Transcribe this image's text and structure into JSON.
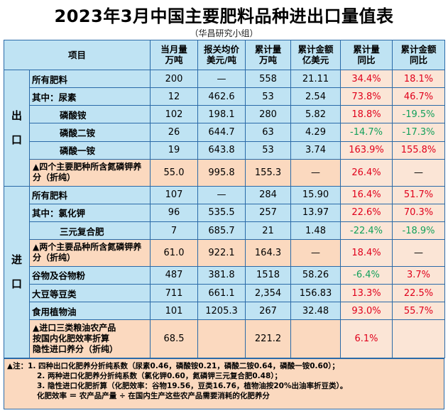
{
  "title": "2023年3月中国主要肥料品种进出口量值表",
  "subtitle": "（华昌研究小组）",
  "headers": {
    "item": "项目",
    "c1a": "当月量",
    "c1b": "万吨",
    "c2a": "报关均价",
    "c2b": "美元/吨",
    "c3a": "累计量",
    "c3b": "万吨",
    "c4a": "累计金额",
    "c4b": "亿美元",
    "c5a": "累计量",
    "c5b": "同比",
    "c6a": "累计金额",
    "c6b": "同比"
  },
  "sections": {
    "export_a": "出",
    "export_b": "口",
    "import_a": "进",
    "import_b": "口"
  },
  "export_rows": [
    {
      "item": "所有肥料",
      "month": "200",
      "price": "—",
      "cum": "558",
      "amount": "21.11",
      "cum_yoy": "34.4%",
      "amt_yoy": "18.1%"
    },
    {
      "item": "其中：尿素",
      "month": "12",
      "price": "462.6",
      "cum": "53",
      "amount": "2.54",
      "cum_yoy": "73.8%",
      "amt_yoy": "46.7%"
    },
    {
      "item": "磷酸铵",
      "month": "102",
      "price": "198.1",
      "cum": "280",
      "amount": "5.82",
      "cum_yoy": "18.8%",
      "amt_yoy": "-19.5%"
    },
    {
      "item": "磷酸二铵",
      "month": "26",
      "price": "644.7",
      "cum": "63",
      "amount": "4.29",
      "cum_yoy": "-14.7%",
      "amt_yoy": "-17.3%"
    },
    {
      "item": "磷酸一铵",
      "month": "19",
      "price": "643.8",
      "cum": "53",
      "amount": "3.74",
      "cum_yoy": "163.9%",
      "amt_yoy": "155.8%"
    },
    {
      "item": "▲四个主要肥种所含氮磷钾养分（折纯）",
      "month": "55.0",
      "price": "995.8",
      "cum": "155.3",
      "amount": "—",
      "cum_yoy": "26.4%",
      "amt_yoy": "—"
    }
  ],
  "import_rows": [
    {
      "item": "所有肥料",
      "month": "107",
      "price": "—",
      "cum": "284",
      "amount": "15.90",
      "cum_yoy": "16.4%",
      "amt_yoy": "51.7%"
    },
    {
      "item": "其中：氯化钾",
      "month": "96",
      "price": "535.5",
      "cum": "257",
      "amount": "13.97",
      "cum_yoy": "22.6%",
      "amt_yoy": "70.3%"
    },
    {
      "item": "三元复合肥",
      "month": "7",
      "price": "685.7",
      "cum": "21",
      "amount": "1.48",
      "cum_yoy": "-22.4%",
      "amt_yoy": "-18.9%"
    },
    {
      "item": "▲两个主要品种所含氮磷钾养分（折纯）",
      "month": "61.0",
      "price": "922.1",
      "cum": "164.3",
      "amount": "—",
      "cum_yoy": "18.4%",
      "amt_yoy": "—"
    },
    {
      "item": "谷物及谷物粉",
      "month": "487",
      "price": "381.8",
      "cum": "1518",
      "amount": "58.26",
      "cum_yoy": "-6.4%",
      "amt_yoy": "3.7%"
    },
    {
      "item": "大豆等豆类",
      "month": "711",
      "price": "661.1",
      "cum": "2,354",
      "amount": "156.83",
      "cum_yoy": "13.3%",
      "amt_yoy": "22.5%"
    },
    {
      "item": "食用植物油",
      "month": "101",
      "price": "1205.3",
      "cum": "267",
      "amount": "32.48",
      "cum_yoy": "93.0%",
      "amt_yoy": "55.7%"
    },
    {
      "item_a": "▲进口三类粮油农产品",
      "item_b": "按国内化肥效率折算",
      "item_c": "隐性进口养分（折纯）",
      "month": "68.5",
      "price": "",
      "cum": "221.2",
      "amount": "",
      "cum_yoy": "6.1%",
      "amt_yoy": ""
    }
  ],
  "notes": [
    "▲注：1. 四种出口化肥养分折纯系数（尿素0.46，磷酸铵0.21，磷酸二铵0.64，磷酸一铵0.60）；",
    "2. 两种进口化肥养分折纯系数（氯化钾0.60，氮磷钾三元复合肥0.48）；",
    "3. 隐性进口化肥折算（化肥效率：谷物19.56，豆类16.76，植物油按20%出油率折豆类）。",
    "化肥效率 ＝ 农产品产量 ÷ 在国内生产这些农产品需要消耗的化肥养分"
  ],
  "colors": {
    "header_blue": "#bfe3f3",
    "highlight_orange": "#fbd9bf",
    "positive_red": "#e0001b",
    "negative_green": "#12a05a",
    "border_blue": "#2a6aa8"
  }
}
